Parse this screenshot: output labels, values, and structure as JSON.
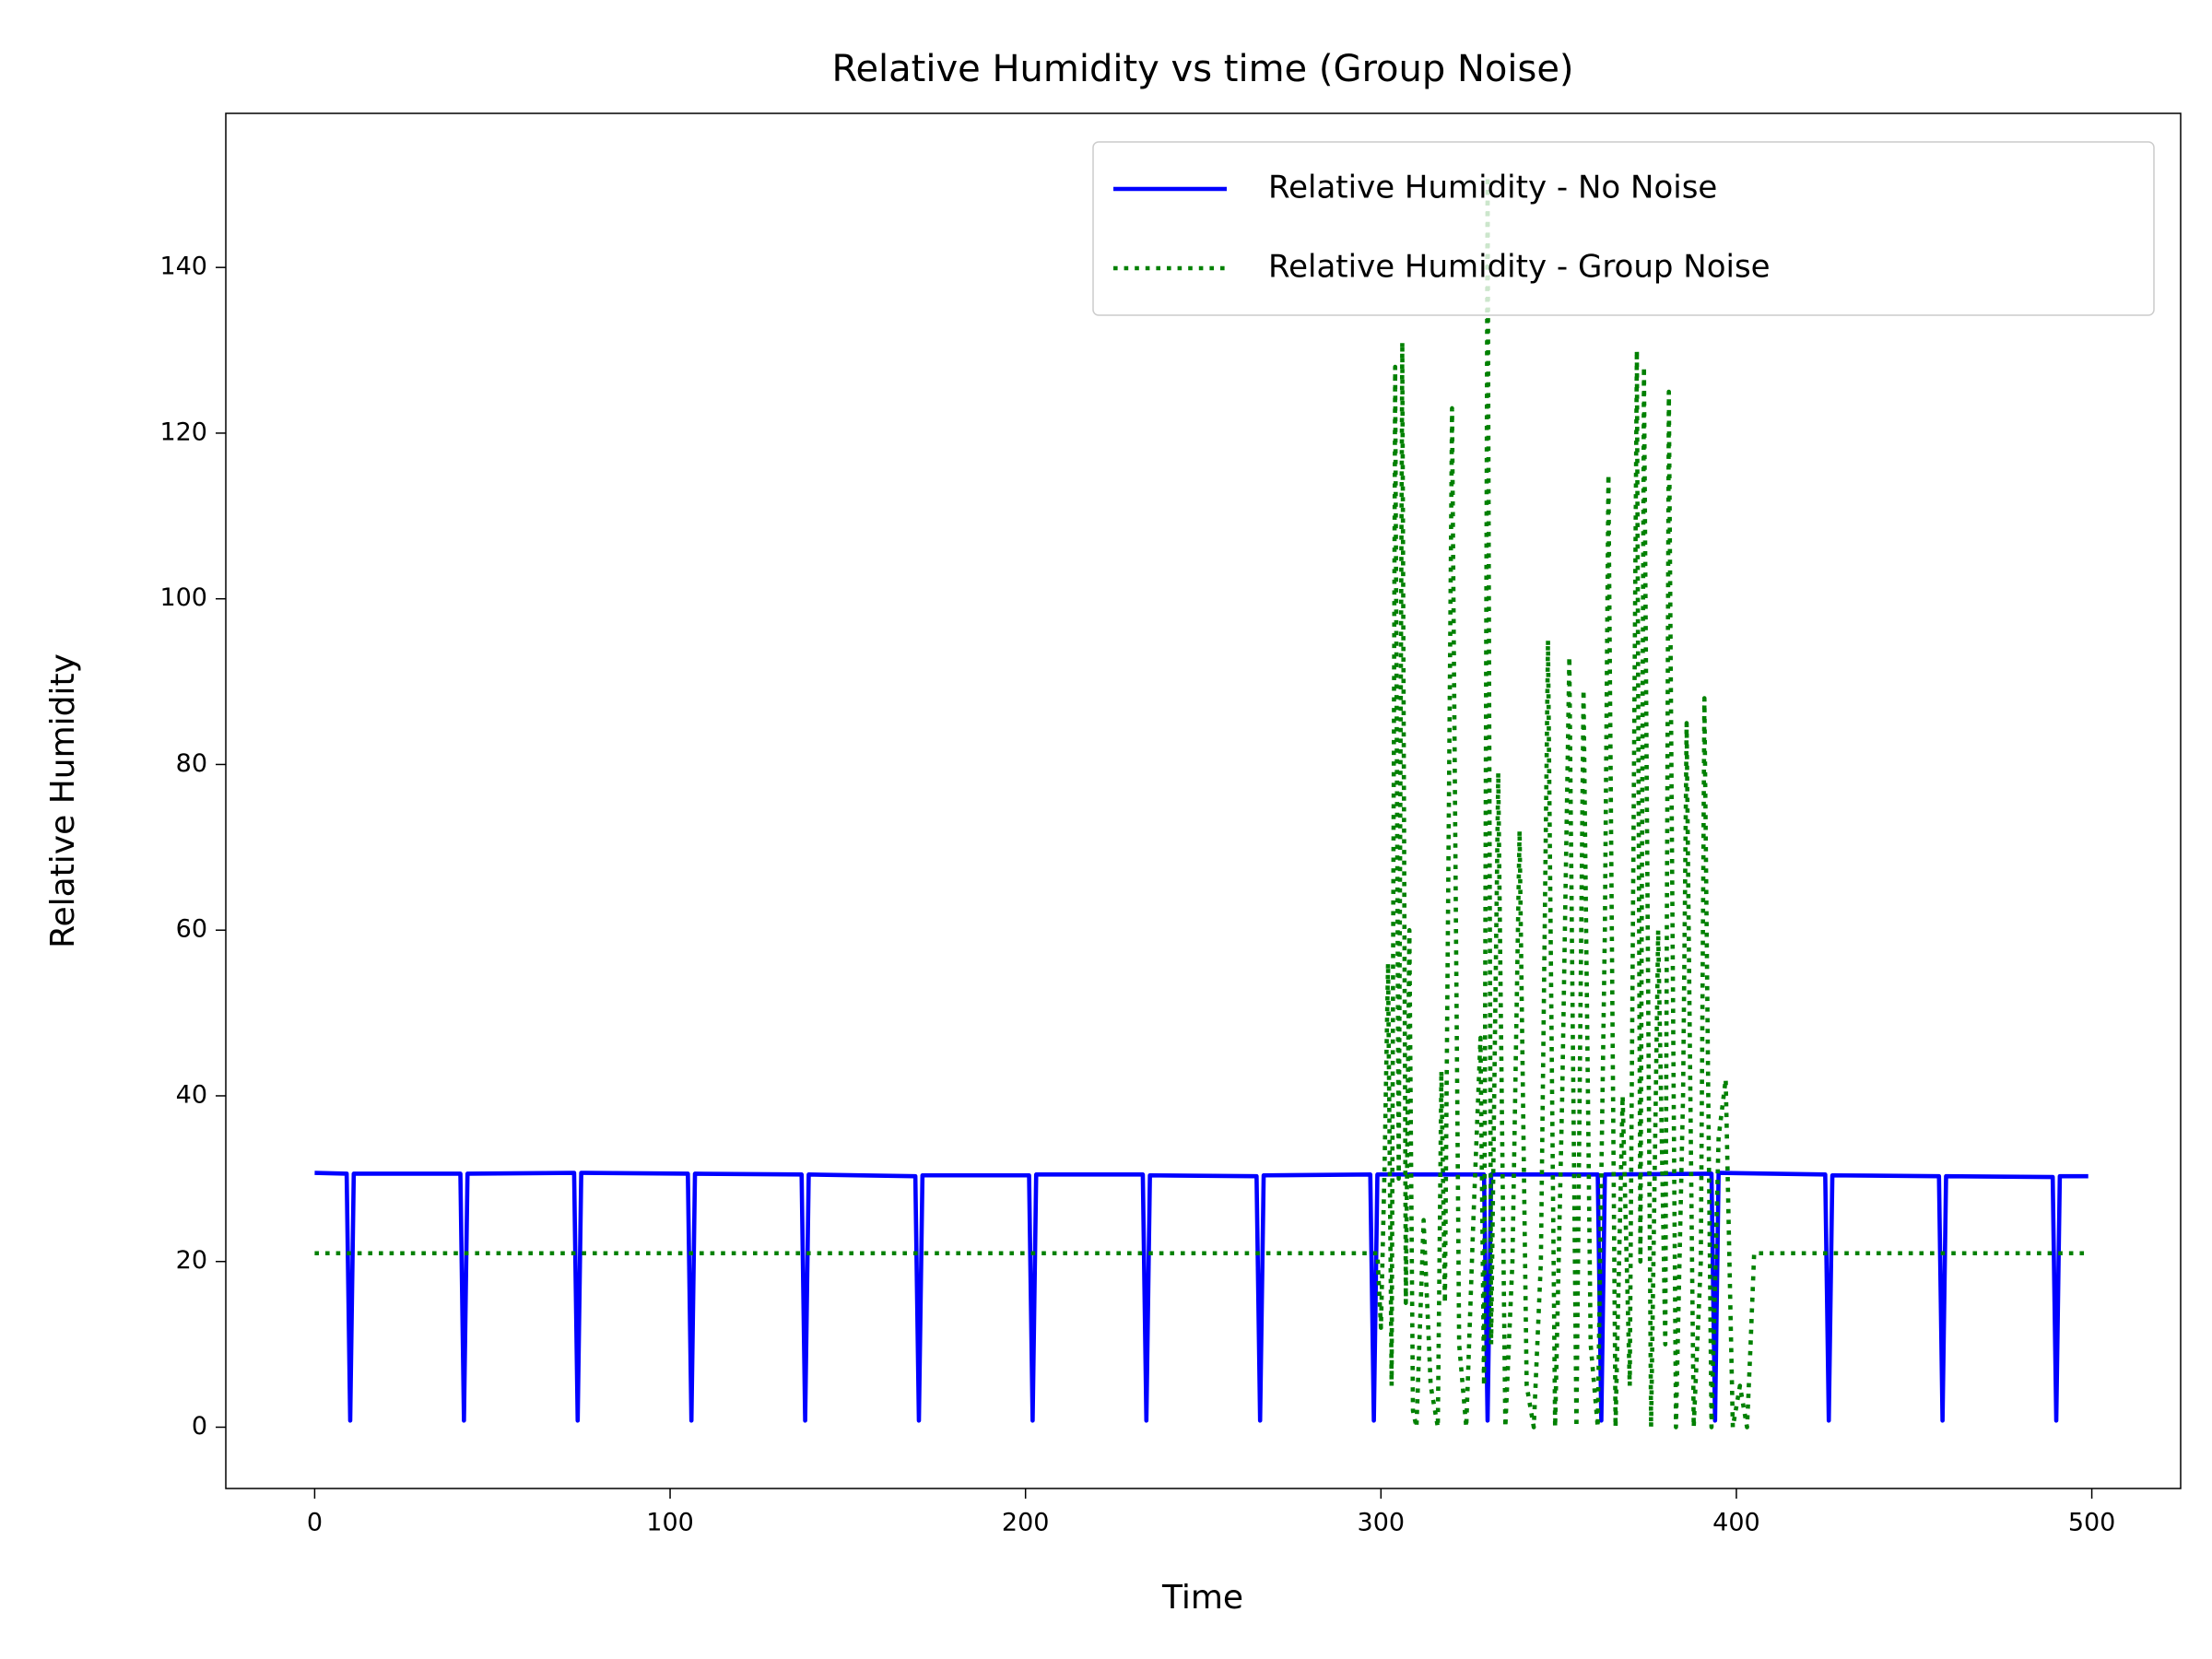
{
  "chart_data": {
    "type": "line",
    "title": "Relative Humidity vs time (Group Noise)",
    "x_label": "Time",
    "y_label": "Relative Humidity",
    "xlim": [
      -25,
      525
    ],
    "xticks": [
      0,
      100,
      200,
      300,
      400,
      500
    ],
    "ylim": [
      -7.4,
      158.6
    ],
    "yticks": [
      0,
      20,
      40,
      60,
      80,
      100,
      120,
      140
    ],
    "grid": false,
    "legend": "upper right",
    "series": [
      {
        "name": "Relative Humidity - No Noise",
        "color": "#0000ff",
        "style": "solid",
        "x": [
          0,
          9,
          10,
          11,
          41,
          42,
          43,
          73,
          74,
          75,
          105,
          106,
          107,
          137,
          138,
          139,
          169,
          170,
          171,
          201,
          202,
          203,
          233,
          234,
          235,
          265,
          266,
          267,
          297,
          298,
          299,
          329,
          330,
          331,
          361,
          362,
          363,
          393,
          394,
          395,
          425,
          426,
          427,
          457,
          458,
          459,
          489,
          490,
          491,
          499
        ],
        "values": [
          30.7,
          30.6,
          0.8,
          30.6,
          30.6,
          0.8,
          30.6,
          30.7,
          0.8,
          30.7,
          30.6,
          0.8,
          30.6,
          30.5,
          0.8,
          30.5,
          30.3,
          0.8,
          30.4,
          30.4,
          0.8,
          30.5,
          30.5,
          0.8,
          30.4,
          30.3,
          0.8,
          30.4,
          30.5,
          0.8,
          30.5,
          30.5,
          0.8,
          30.5,
          30.5,
          0.8,
          30.5,
          30.6,
          0.8,
          30.7,
          30.5,
          0.8,
          30.4,
          30.3,
          0.8,
          30.3,
          30.2,
          0.8,
          30.3,
          30.3
        ]
      },
      {
        "name": "Relative Humidity - Group Noise",
        "color": "#008000",
        "style": "dotted",
        "x": [
          0,
          299,
          300,
          301,
          302,
          303,
          304,
          305,
          306,
          307,
          308,
          309,
          310,
          312,
          314,
          316,
          317,
          318,
          320,
          322,
          324,
          326,
          328,
          329,
          330,
          331,
          333,
          335,
          337,
          339,
          341,
          343,
          345,
          347,
          349,
          351,
          353,
          355,
          357,
          359,
          361,
          363,
          364,
          366,
          368,
          370,
          372,
          373,
          374,
          376,
          378,
          380,
          381,
          383,
          385,
          386,
          388,
          390,
          391,
          393,
          395,
          397,
          399,
          401,
          403,
          404,
          405,
          498
        ],
        "values": [
          21,
          21,
          12,
          31,
          56,
          5,
          128,
          30,
          131,
          15,
          60,
          2,
          0,
          25,
          5,
          0,
          43,
          15,
          123,
          10,
          0,
          25,
          47,
          5,
          151,
          10,
          79,
          0,
          20,
          72,
          5,
          0,
          20,
          95,
          0,
          40,
          93,
          0,
          89,
          10,
          0,
          60,
          115,
          0,
          40,
          5,
          130,
          20,
          128,
          0,
          60,
          10,
          125,
          0,
          40,
          85,
          0,
          20,
          88,
          0,
          35,
          42,
          0,
          5,
          0,
          10,
          21,
          21
        ]
      }
    ]
  }
}
